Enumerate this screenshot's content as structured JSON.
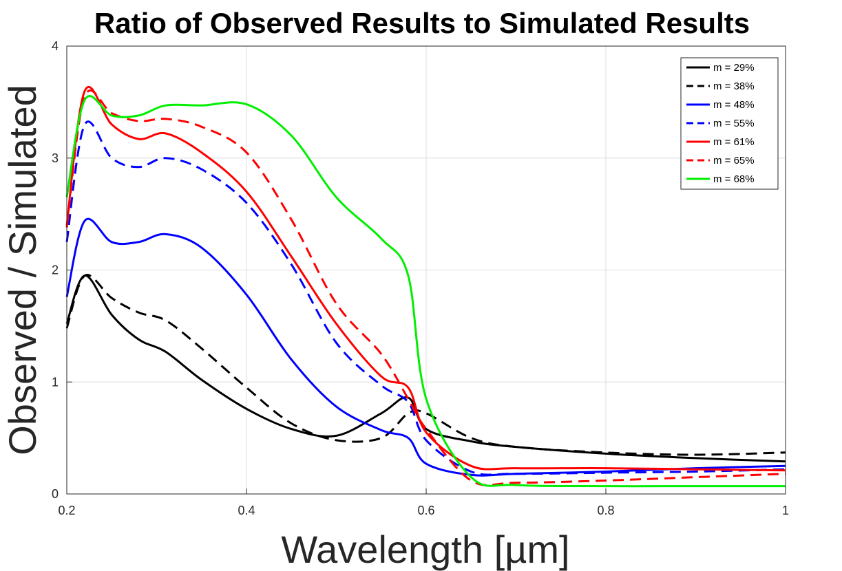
{
  "chart_data": {
    "type": "line",
    "title": "Ratio of Observed Results to Simulated Results",
    "xlabel": "Wavelength [µm]",
    "ylabel": "Observed / Simulated",
    "xlim": [
      0.2,
      1.0
    ],
    "ylim": [
      0,
      4
    ],
    "xticks": [
      0.2,
      0.4,
      0.6,
      0.8,
      1.0
    ],
    "xtick_labels": [
      "0.2",
      "0.4",
      "0.6",
      "0.8",
      "1"
    ],
    "yticks": [
      0,
      1,
      2,
      3,
      4
    ],
    "ytick_labels": [
      "0",
      "1",
      "2",
      "3",
      "4"
    ],
    "grid": true,
    "legend_position": "top-right",
    "x": [
      0.2,
      0.22,
      0.25,
      0.28,
      0.31,
      0.35,
      0.4,
      0.45,
      0.5,
      0.55,
      0.58,
      0.6,
      0.65,
      0.7,
      0.8,
      0.9,
      1.0
    ],
    "series": [
      {
        "name": "m = 29%",
        "color": "#000000",
        "dash": "solid",
        "values": [
          1.52,
          1.95,
          1.6,
          1.38,
          1.27,
          1.02,
          0.76,
          0.58,
          0.52,
          0.72,
          0.86,
          0.58,
          0.47,
          0.42,
          0.36,
          0.32,
          0.29
        ]
      },
      {
        "name": "m = 38%",
        "color": "#000000",
        "dash": "dashed",
        "values": [
          1.48,
          1.95,
          1.75,
          1.62,
          1.55,
          1.3,
          0.95,
          0.63,
          0.48,
          0.5,
          0.72,
          0.72,
          0.5,
          0.42,
          0.37,
          0.35,
          0.37
        ]
      },
      {
        "name": "m = 48%",
        "color": "#0000ff",
        "dash": "solid",
        "values": [
          1.76,
          2.44,
          2.25,
          2.25,
          2.32,
          2.2,
          1.78,
          1.2,
          0.78,
          0.57,
          0.5,
          0.27,
          0.17,
          0.18,
          0.2,
          0.23,
          0.25
        ]
      },
      {
        "name": "m = 55%",
        "color": "#0000ff",
        "dash": "dashed",
        "values": [
          2.25,
          3.3,
          3.0,
          2.92,
          3.0,
          2.9,
          2.6,
          2.05,
          1.35,
          0.97,
          0.82,
          0.48,
          0.2,
          0.18,
          0.19,
          0.2,
          0.22
        ]
      },
      {
        "name": "m = 61%",
        "color": "#ff0000",
        "dash": "solid",
        "values": [
          2.4,
          3.6,
          3.3,
          3.17,
          3.22,
          3.05,
          2.7,
          2.12,
          1.52,
          1.05,
          0.95,
          0.55,
          0.25,
          0.23,
          0.23,
          0.22,
          0.21
        ]
      },
      {
        "name": "m = 65%",
        "color": "#ff0000",
        "dash": "dashed",
        "values": [
          2.38,
          3.55,
          3.4,
          3.33,
          3.35,
          3.28,
          3.05,
          2.45,
          1.7,
          1.25,
          0.85,
          0.58,
          0.12,
          0.1,
          0.12,
          0.15,
          0.18
        ]
      },
      {
        "name": "m = 68%",
        "color": "#00ee00",
        "dash": "solid",
        "values": [
          2.65,
          3.52,
          3.38,
          3.38,
          3.47,
          3.47,
          3.48,
          3.2,
          2.65,
          2.28,
          1.95,
          0.85,
          0.15,
          0.08,
          0.07,
          0.07,
          0.07
        ]
      }
    ]
  }
}
